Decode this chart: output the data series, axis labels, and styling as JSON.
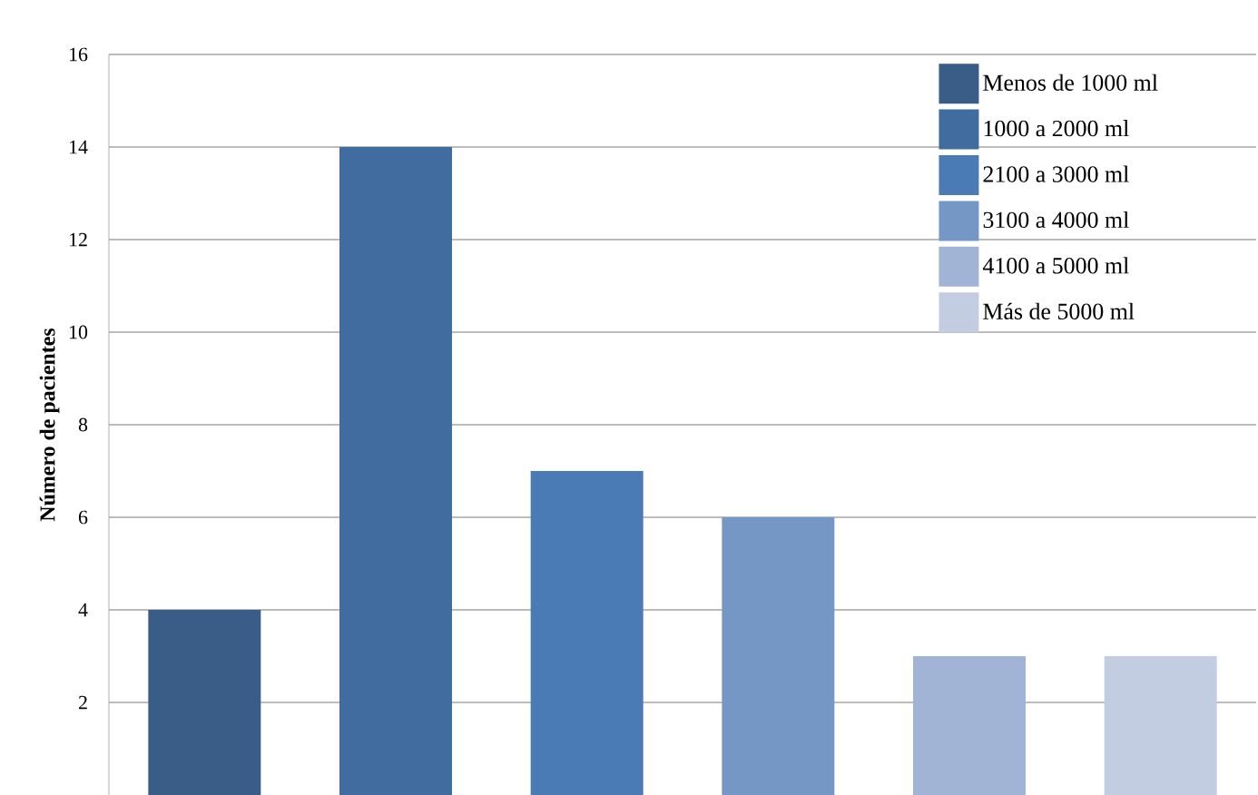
{
  "chart_data": {
    "type": "bar",
    "ylabel": "Número de pacientes",
    "categories": [
      null,
      null,
      null,
      null,
      null,
      null
    ],
    "series": [
      {
        "name": "Menos de 1000 ml",
        "color": "#3a5d88",
        "values": [
          4,
          null,
          null,
          null,
          null,
          null
        ]
      },
      {
        "name": "1000 a 2000 ml",
        "color": "#416c9f",
        "values": [
          null,
          14,
          null,
          null,
          null,
          null
        ]
      },
      {
        "name": "2100 a 3000 ml",
        "color": "#4a7bb4",
        "values": [
          null,
          null,
          7,
          null,
          null,
          null
        ]
      },
      {
        "name": "3100 a 4000 ml",
        "color": "#7597c6",
        "values": [
          null,
          null,
          null,
          6,
          null,
          null
        ]
      },
      {
        "name": "4100 a 5000 ml",
        "color": "#a2b4d5",
        "values": [
          null,
          null,
          null,
          null,
          3,
          null
        ]
      },
      {
        "name": "Más de 5000 ml",
        "color": "#c2cde2",
        "values": [
          null,
          null,
          null,
          null,
          null,
          3
        ]
      }
    ],
    "ylim": [
      0,
      16
    ],
    "yticks": [
      2,
      4,
      6,
      8,
      10,
      12,
      14,
      16
    ],
    "grid": "y",
    "legend": "top right",
    "tick_labels": "y"
  }
}
